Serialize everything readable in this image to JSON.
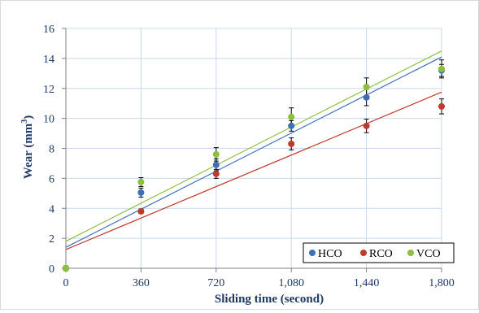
{
  "chart_data": {
    "type": "scatter",
    "xlabel": "Sliding time (second)",
    "ylabel_main": "Wear (mm",
    "ylabel_sup": "3",
    "ylabel_close": ")",
    "xlim": [
      0,
      1800
    ],
    "ylim": [
      0,
      16
    ],
    "x_ticks": [
      0,
      360,
      720,
      1080,
      1440,
      1800
    ],
    "x_tick_labels": [
      "0",
      "360",
      "720",
      "1,080",
      "1,440",
      "1,800"
    ],
    "y_ticks": [
      0,
      2,
      4,
      6,
      8,
      10,
      12,
      14,
      16
    ],
    "y_tick_labels": [
      "0",
      "2",
      "4",
      "6",
      "8",
      "10",
      "12",
      "14",
      "16"
    ],
    "grid": true,
    "legend_position": "bottom-right",
    "trendlines": "linear",
    "series": [
      {
        "name": "HCO",
        "color": "#3d6fb6",
        "x": [
          0,
          360,
          720,
          1080,
          1440,
          1800
        ],
        "values": [
          0.0,
          5.05,
          6.9,
          9.5,
          11.4,
          13.2
        ],
        "error": [
          0.15,
          0.3,
          0.4,
          0.35,
          0.55,
          0.4
        ],
        "trend": [
          1.4,
          14.1
        ]
      },
      {
        "name": "RCO",
        "color": "#c0392b",
        "x": [
          0,
          360,
          720,
          1080,
          1440,
          1800
        ],
        "values": [
          0.0,
          3.8,
          6.3,
          8.3,
          9.5,
          10.8
        ],
        "error": [
          0.1,
          0.15,
          0.3,
          0.4,
          0.45,
          0.5
        ],
        "trend": [
          1.25,
          11.75
        ]
      },
      {
        "name": "VCO",
        "color": "#8dbf3f",
        "x": [
          0,
          360,
          720,
          1080,
          1440,
          1800
        ],
        "values": [
          0.0,
          5.75,
          7.6,
          10.1,
          12.1,
          13.3
        ],
        "error": [
          0.15,
          0.3,
          0.45,
          0.6,
          0.6,
          0.6
        ],
        "trend": [
          1.8,
          14.5
        ]
      }
    ]
  }
}
